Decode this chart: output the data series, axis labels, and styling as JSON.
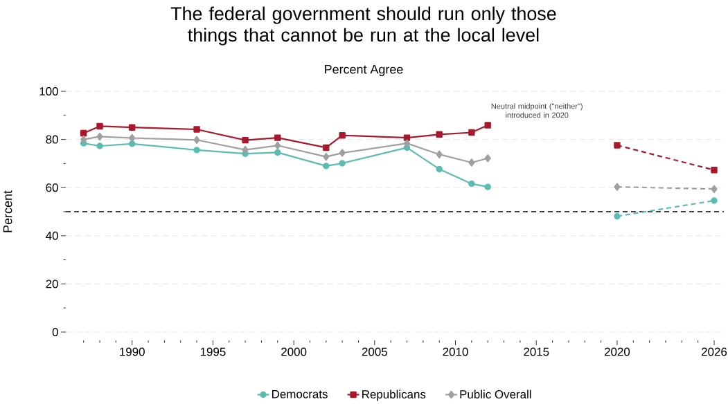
{
  "chart_data": {
    "type": "line",
    "title": "The federal government should run only those things that cannot be run at the local level",
    "subtitle": "Percent Agree",
    "ylabel": "Percent",
    "series": [
      {
        "name": "Democrats",
        "color": "#5bbcb0",
        "marker": "circle",
        "line_style": "solid",
        "x": [
          1987,
          1988,
          1990,
          1994,
          1997,
          1999,
          2002,
          2003,
          2007,
          2009,
          2011,
          2012
        ],
        "values": [
          78.4,
          77.3,
          78.2,
          75.6,
          74.1,
          74.6,
          69.0,
          70.1,
          76.6,
          67.7,
          61.6,
          60.3
        ]
      },
      {
        "name": "Republicans",
        "color": "#a8192e",
        "marker": "square",
        "line_style": "solid",
        "x": [
          1987,
          1988,
          1990,
          1994,
          1997,
          1999,
          2002,
          2003,
          2007,
          2009,
          2011,
          2012
        ],
        "values": [
          82.6,
          85.5,
          85.0,
          84.2,
          79.7,
          80.7,
          76.6,
          81.7,
          80.7,
          82.1,
          82.9,
          85.9
        ]
      },
      {
        "name": "Public Overall",
        "color": "#a0a0a0",
        "marker": "diamond",
        "line_style": "solid",
        "x": [
          1987,
          1988,
          1990,
          1994,
          1997,
          1999,
          2002,
          2003,
          2007,
          2009,
          2011,
          2012
        ],
        "values": [
          80.0,
          81.2,
          80.6,
          79.8,
          75.7,
          77.5,
          72.8,
          74.4,
          78.4,
          73.8,
          70.4,
          72.2
        ]
      },
      {
        "color": "#5bbcb0",
        "marker": "circle",
        "line_style": "dashed",
        "x": [
          2020,
          2026
        ],
        "values": [
          48.1,
          54.6
        ]
      },
      {
        "color": "#a8192e",
        "marker": "square",
        "line_style": "dashed",
        "x": [
          2020,
          2026
        ],
        "values": [
          77.6,
          67.3
        ]
      },
      {
        "color": "#a0a0a0",
        "marker": "diamond",
        "line_style": "dashed",
        "x": [
          2020,
          2026
        ],
        "values": [
          60.3,
          59.4
        ]
      }
    ],
    "xlim": [
      1985.9,
      2026.6
    ],
    "ylim": [
      0,
      100
    ],
    "xticks": [
      {
        "value": 1987,
        "label": null
      },
      {
        "value": 1988,
        "label": null
      },
      {
        "value": 1989,
        "label": null
      },
      1990,
      {
        "value": 1991,
        "label": null
      },
      {
        "value": 1992,
        "label": null
      },
      {
        "value": 1993,
        "label": null
      },
      {
        "value": 1994,
        "label": null
      },
      1995,
      {
        "value": 1996,
        "label": null
      },
      {
        "value": 1997,
        "label": null
      },
      {
        "value": 1998,
        "label": null
      },
      {
        "value": 1999,
        "label": null
      },
      2000,
      {
        "value": 2001,
        "label": null
      },
      {
        "value": 2002,
        "label": null
      },
      {
        "value": 2003,
        "label": null
      },
      {
        "value": 2004,
        "label": null
      },
      2005,
      {
        "value": 2006,
        "label": null
      },
      {
        "value": 2007,
        "label": null
      },
      {
        "value": 2008,
        "label": null
      },
      {
        "value": 2009,
        "label": null
      },
      2010,
      {
        "value": 2011,
        "label": null
      },
      {
        "value": 2012,
        "label": null
      },
      {
        "value": 2013,
        "label": null
      },
      {
        "value": 2014,
        "label": null
      },
      2015,
      {
        "value": 2016,
        "label": null
      },
      {
        "value": 2017,
        "label": null
      },
      {
        "value": 2018,
        "label": null
      },
      {
        "value": 2019,
        "label": null
      },
      2020,
      {
        "value": 2021,
        "label": null
      },
      {
        "value": 2022,
        "label": null
      },
      {
        "value": 2023,
        "label": null
      },
      {
        "value": 2024,
        "label": null
      },
      {
        "value": 2025,
        "label": null
      },
      2026
    ],
    "yticks": [
      0,
      {
        "value": 10,
        "label": null
      },
      20,
      {
        "value": 30,
        "label": null
      },
      40,
      {
        "value": 50,
        "label": null
      },
      60,
      {
        "value": 70,
        "label": null
      },
      80,
      {
        "value": 90,
        "label": null
      },
      100
    ],
    "ref_lines": [
      {
        "axis": "y",
        "value": 50,
        "color": "#000000",
        "line_style": "dashed"
      }
    ],
    "annotations": [
      "Neutral midpoint (\"neither\") introduced in 2020"
    ],
    "grid": "y",
    "legend": "bottom"
  }
}
